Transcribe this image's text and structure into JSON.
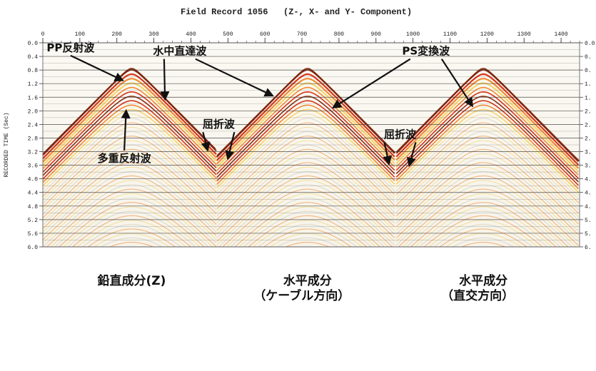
{
  "chart_data": {
    "type": "seismic-record",
    "title": "Field Record 1056   (Z-, X- and Y- Component)",
    "ylabel": "RECORDED TIME (Sec)",
    "xlabel": "",
    "x_ticks": [
      0,
      100,
      200,
      300,
      400,
      500,
      600,
      700,
      800,
      900,
      1000,
      1100,
      1200,
      1300,
      1400
    ],
    "xlim": [
      0,
      1450
    ],
    "y_ticks": [
      "0.0",
      "0.4",
      "0.8",
      "1.2",
      "1.6",
      "2.0",
      "2.4",
      "2.8",
      "3.2",
      "3.6",
      "4.0",
      "4.4",
      "4.8",
      "5.2",
      "5.6",
      "6.0"
    ],
    "y_ticks_right": [
      "0.0",
      "0.",
      "0.",
      "1.",
      "1.",
      "2.",
      "2.",
      "2.",
      "3.",
      "3.",
      "4.",
      "4.",
      "4.",
      "5.",
      "5.",
      "6."
    ],
    "ylim": [
      0,
      6.0
    ],
    "panels": [
      {
        "apex_trace": 240,
        "apex_time": 0.75,
        "base_left": 0,
        "base_right": 470
      },
      {
        "apex_trace": 715,
        "apex_time": 0.75,
        "base_left": 470,
        "base_right": 955
      },
      {
        "apex_trace": 1190,
        "apex_time": 0.75,
        "base_left": 955,
        "base_right": 1450
      }
    ],
    "annotations": [
      {
        "text": "PP反射波",
        "x": 75,
        "t": 0.25,
        "arrow_to": [
          215,
          1.1
        ]
      },
      {
        "text": "水中直達波",
        "x": 370,
        "t": 0.35,
        "arrow_to_1": [
          330,
          1.65
        ],
        "arrow_to_2": [
          620,
          1.55
        ]
      },
      {
        "text": "PS変換波",
        "x": 1035,
        "t": 0.35,
        "arrow_to_1": [
          785,
          1.9
        ],
        "arrow_to_2": [
          1160,
          1.85
        ]
      },
      {
        "text": "屈折波",
        "x": 475,
        "t": 2.5,
        "arrow_to_1": [
          445,
          3.15
        ],
        "arrow_to_2": [
          500,
          3.4
        ]
      },
      {
        "text": "屈折波",
        "x": 965,
        "t": 2.8,
        "arrow_to_1": [
          935,
          3.55
        ],
        "arrow_to_2": [
          990,
          3.6
        ]
      },
      {
        "text": "多重反射波",
        "x": 220,
        "t": 3.5,
        "arrow_to": [
          225,
          2.0
        ]
      }
    ],
    "captions": [
      {
        "lines": [
          "鉛直成分(Z)"
        ],
        "x": 240
      },
      {
        "lines": [
          "水平成分",
          "（ケーブル方向）"
        ],
        "x": 715
      },
      {
        "lines": [
          "水平成分",
          "（直交方向）"
        ],
        "x": 1190
      }
    ],
    "colors": {
      "dark": "#7a1a00",
      "red": "#d02000",
      "orange": "#f08020",
      "yellow": "#f4d060",
      "light": "#f8f4ea",
      "grid": "#333333"
    }
  }
}
